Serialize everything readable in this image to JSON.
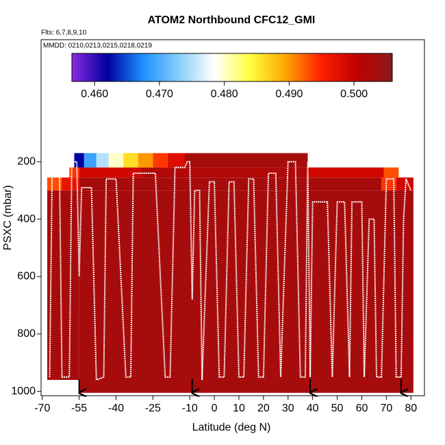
{
  "chart_data": {
    "type": "curtain",
    "title": "ATOM2 Northbound CFC12_GMI",
    "subtitle": "Flts: 6,7,8,9,10",
    "annotation": "MMDD: 0210,0213,0215,0218,0219",
    "x_label": "Latitude (deg N)",
    "y_label": "PSXC (mbar)",
    "xlim": [
      -70.5,
      85.5
    ],
    "xticks": [
      -70,
      -55,
      -40,
      -25,
      -10,
      0,
      10,
      20,
      30,
      40,
      50,
      60,
      70,
      80
    ],
    "ylim": [
      1015,
      -225
    ],
    "yticks": [
      200,
      400,
      600,
      800,
      1000
    ],
    "clim": [
      0.4565,
      0.5059
    ],
    "cticks": [
      {
        "value": 0.46,
        "label": "0.460"
      },
      {
        "value": 0.47,
        "label": "0.470"
      },
      {
        "value": 0.48,
        "label": "0.480"
      },
      {
        "value": 0.49,
        "label": "0.490"
      },
      {
        "value": 0.5,
        "label": "0.500"
      }
    ],
    "colormap": [
      "#8a2be2",
      "#0000a0",
      "#1e90ff",
      "#87cefa",
      "#ffffff",
      "#ffff40",
      "#ffa500",
      "#ff2000",
      "#c00000",
      "#8b1a1a"
    ],
    "cells": [
      {
        "lat": [
          -68,
          -55
        ],
        "p": [
          300,
          960
        ],
        "value": 0.503
      },
      {
        "lat": [
          -55,
          81
        ],
        "p": [
          300,
          1005
        ],
        "value": 0.503
      },
      {
        "lat": [
          -68,
          -62
        ],
        "p": [
          255,
          300
        ],
        "value": 0.493
      },
      {
        "lat": [
          -62,
          -55
        ],
        "p": [
          255,
          300
        ],
        "value": 0.497
      },
      {
        "lat": [
          -55,
          68
        ],
        "p": [
          255,
          300
        ],
        "value": 0.503
      },
      {
        "lat": [
          68,
          74
        ],
        "p": [
          255,
          300
        ],
        "value": 0.494
      },
      {
        "lat": [
          74,
          81
        ],
        "p": [
          255,
          300
        ],
        "value": 0.499
      },
      {
        "lat": [
          -59,
          -55
        ],
        "p": [
          220,
          255
        ],
        "value": 0.494
      },
      {
        "lat": [
          -55,
          -30
        ],
        "p": [
          220,
          255
        ],
        "value": 0.499
      },
      {
        "lat": [
          -30,
          38
        ],
        "p": [
          220,
          255
        ],
        "value": 0.502
      },
      {
        "lat": [
          38,
          69
        ],
        "p": [
          220,
          255
        ],
        "value": 0.499
      },
      {
        "lat": [
          69,
          75
        ],
        "p": [
          220,
          255
        ],
        "value": 0.493
      },
      {
        "lat": [
          -57,
          -53
        ],
        "p": [
          170,
          220
        ],
        "value": 0.462
      },
      {
        "lat": [
          -53,
          -48
        ],
        "p": [
          170,
          220
        ],
        "value": 0.469
      },
      {
        "lat": [
          -48,
          -43
        ],
        "p": [
          170,
          220
        ],
        "value": 0.475
      },
      {
        "lat": [
          -43,
          -37
        ],
        "p": [
          170,
          220
        ],
        "value": 0.48
      },
      {
        "lat": [
          -37,
          -31
        ],
        "p": [
          170,
          220
        ],
        "value": 0.486
      },
      {
        "lat": [
          -31,
          -25
        ],
        "p": [
          170,
          220
        ],
        "value": 0.49
      },
      {
        "lat": [
          -25,
          -19
        ],
        "p": [
          170,
          220
        ],
        "value": 0.494
      },
      {
        "lat": [
          -19,
          -12
        ],
        "p": [
          170,
          220
        ],
        "value": 0.498
      },
      {
        "lat": [
          -12,
          38
        ],
        "p": [
          170,
          220
        ],
        "value": 0.503
      }
    ],
    "track": {
      "lat": [
        -67,
        -66,
        -63,
        -62,
        -59,
        -58,
        -56,
        -55,
        -54,
        -50,
        -48,
        -45,
        -44,
        -40,
        -36,
        -34,
        -33,
        -24,
        -20,
        -18,
        -16,
        -12,
        -11,
        -10,
        -9,
        -8,
        -6,
        -5,
        -2,
        0,
        2,
        4,
        6,
        8,
        10,
        12,
        14,
        16,
        18,
        20,
        22,
        25,
        27,
        30,
        33,
        35,
        37,
        38,
        39,
        40,
        46,
        48,
        50,
        53,
        55,
        56,
        60,
        61,
        63,
        65,
        66,
        68,
        70,
        73,
        74,
        76,
        77,
        78,
        80
      ],
      "p": [
        950,
        240,
        240,
        950,
        950,
        200,
        200,
        600,
        290,
        290,
        960,
        950,
        260,
        260,
        950,
        950,
        240,
        240,
        950,
        950,
        220,
        220,
        200,
        200,
        680,
        300,
        300,
        960,
        270,
        270,
        950,
        950,
        270,
        270,
        950,
        950,
        260,
        260,
        950,
        950,
        240,
        240,
        950,
        200,
        200,
        950,
        950,
        200,
        950,
        340,
        340,
        950,
        340,
        340,
        950,
        340,
        340,
        950,
        400,
        400,
        950,
        950,
        260,
        260,
        950,
        950,
        400,
        260,
        300
      ]
    },
    "markers": [
      -55,
      -9,
      39,
      76
    ]
  }
}
